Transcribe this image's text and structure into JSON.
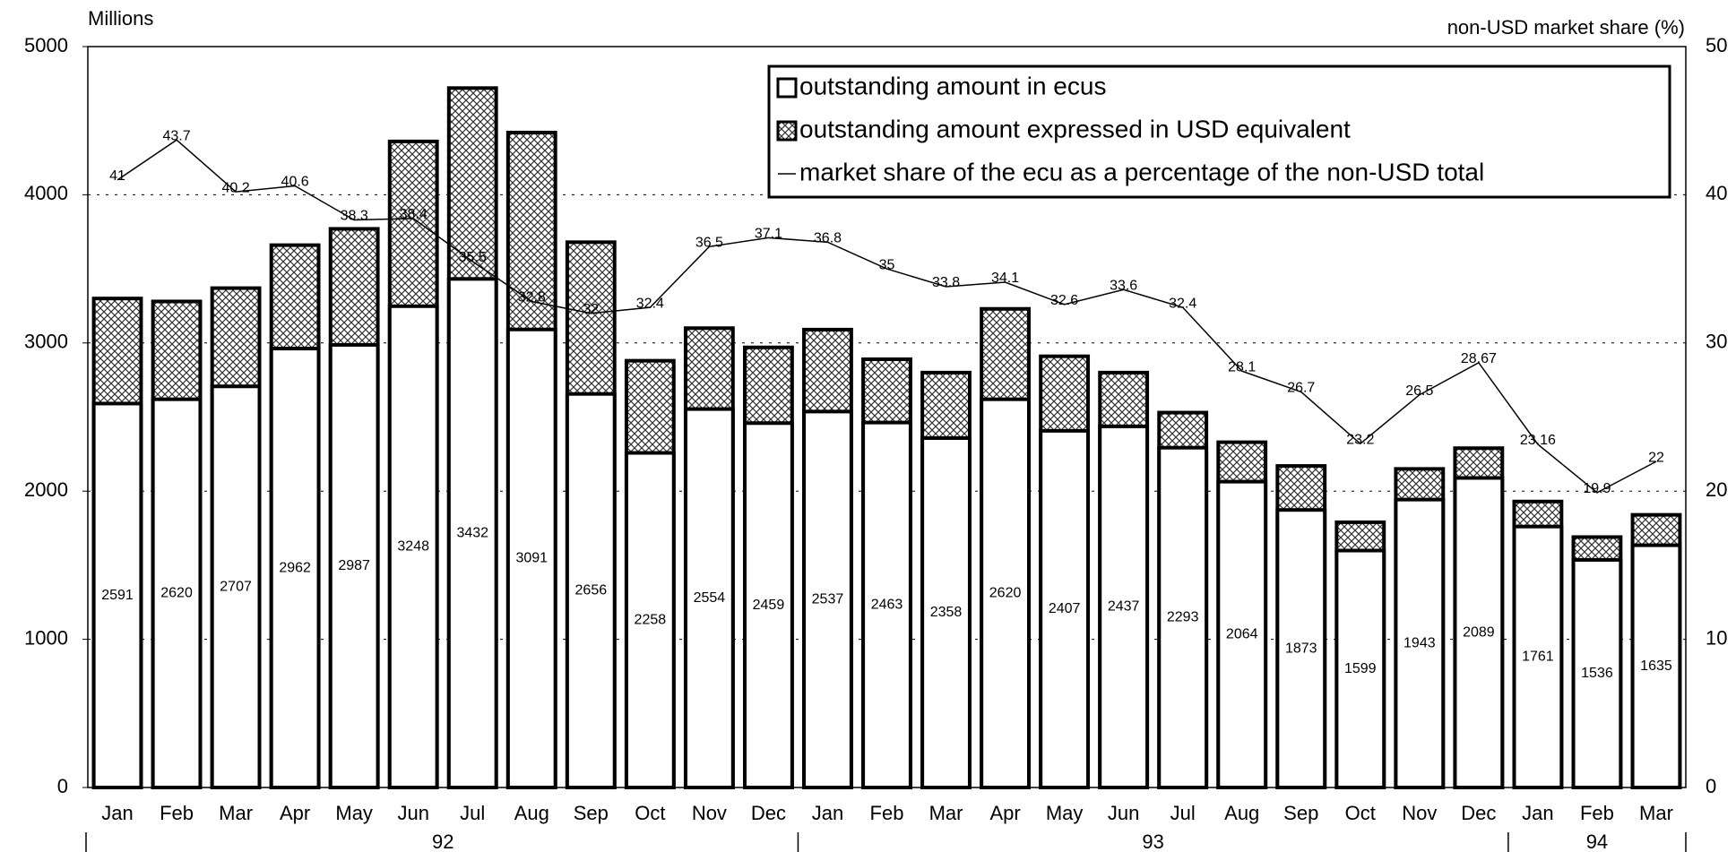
{
  "chart_data": {
    "type": "bar_line",
    "y_label": "Millions",
    "y2_label": "non-USD market share (%)",
    "categories": [
      "Jan",
      "Feb",
      "Mar",
      "Apr",
      "May",
      "Jun",
      "Jul",
      "Aug",
      "Sep",
      "Oct",
      "Nov",
      "Dec",
      "Jan",
      "Feb",
      "Mar",
      "Apr",
      "May",
      "Jun",
      "Jul",
      "Aug",
      "Sep",
      "Oct",
      "Nov",
      "Dec",
      "Jan",
      "Feb",
      "Mar"
    ],
    "year_groups": [
      {
        "label": "92",
        "count": 12
      },
      {
        "label": "93",
        "count": 12
      },
      {
        "label": "94",
        "count": 3
      }
    ],
    "series": [
      {
        "name": "outstanding amount expressed in USD equivalent",
        "color": "#555555",
        "pattern": "crosshatch",
        "values": [
          3300,
          3280,
          3370,
          3660,
          3770,
          4360,
          4720,
          4420,
          3680,
          2880,
          3100,
          2970,
          3090,
          2890,
          2800,
          3230,
          2910,
          2800,
          2530,
          2330,
          2170,
          1790,
          2150,
          2290,
          1930,
          1690,
          1840
        ]
      },
      {
        "name": "outstanding amount in ecus",
        "color": "#ffffff",
        "values": [
          2591,
          2620,
          2707,
          2962,
          2987,
          3248,
          3432,
          3091,
          2656,
          2258,
          2554,
          2459,
          2537,
          2463,
          2358,
          2620,
          2407,
          2437,
          2293,
          2064,
          1873,
          1599,
          1943,
          2089,
          1761,
          1536,
          1635
        ]
      },
      {
        "name": "market share of the ecu as a percentage of the non-USD total",
        "color": "#000000",
        "axis": "y2",
        "values": [
          41,
          43.7,
          40.2,
          40.6,
          38.3,
          38.4,
          35.5,
          32.8,
          32,
          32.4,
          36.5,
          37.1,
          36.8,
          35,
          33.8,
          34.1,
          32.6,
          33.6,
          32.4,
          28.1,
          26.7,
          23.2,
          26.5,
          28.67,
          23.16,
          19.9,
          22
        ]
      }
    ],
    "ylim": [
      0,
      5000
    ],
    "yticks": [
      0,
      1000,
      2000,
      3000,
      4000,
      5000
    ],
    "y2lim": [
      0,
      50
    ],
    "y2ticks": [
      0,
      10,
      20,
      30,
      40,
      50
    ],
    "grid": true,
    "legend": "top-right"
  }
}
